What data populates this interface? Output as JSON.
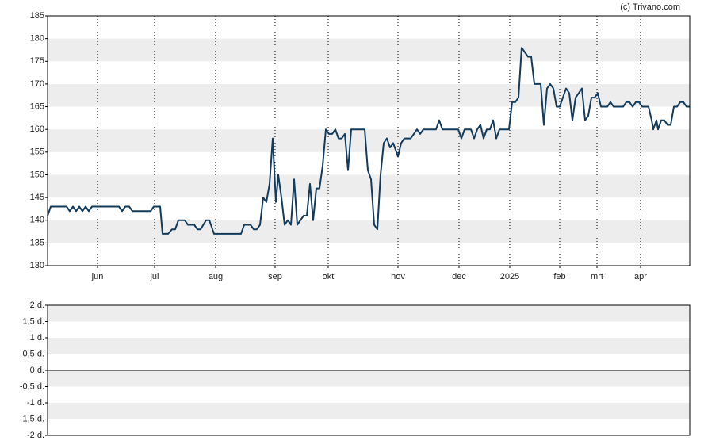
{
  "watermark": "(c) Trivano.com",
  "chart_data": [
    {
      "type": "line",
      "x": [
        0,
        4,
        24,
        28,
        32,
        36,
        40,
        44,
        48,
        52,
        56,
        90,
        94,
        98,
        103,
        107,
        130,
        134,
        142,
        145,
        152,
        157,
        161,
        165,
        173,
        177,
        185,
        189,
        193,
        200,
        204,
        210,
        244,
        248,
        256,
        260,
        264,
        268,
        272,
        276,
        280,
        284,
        288,
        291,
        295,
        299,
        303,
        307,
        311,
        315,
        319,
        323,
        327,
        331,
        335,
        339,
        343,
        347,
        351,
        355,
        359,
        363,
        367,
        371,
        375,
        379,
        383,
        387,
        400,
        404,
        408,
        412,
        416,
        420,
        424,
        428,
        432,
        436,
        440,
        442,
        446,
        450,
        458,
        462,
        466,
        470,
        474,
        490,
        494,
        498,
        518,
        522,
        526,
        534,
        538,
        542,
        546,
        550,
        554,
        558,
        562,
        566,
        570,
        582,
        586,
        590,
        594,
        598,
        602,
        606,
        610,
        614,
        622,
        626,
        630,
        634,
        638,
        642,
        646,
        650,
        654,
        658,
        662,
        666,
        670,
        674,
        678,
        682,
        686,
        690,
        694,
        698,
        706,
        710,
        714,
        726,
        730,
        734,
        738,
        742,
        746,
        750,
        758,
        762,
        764,
        768,
        770,
        774,
        778,
        782,
        786,
        790,
        794,
        798,
        802,
        806,
        810
      ],
      "series": [
        {
          "color": "#123b5c",
          "values": [
            141,
            143,
            143,
            142,
            143,
            142,
            143,
            142,
            143,
            142,
            143,
            143,
            142,
            143,
            143,
            142,
            142,
            143,
            143,
            137,
            137,
            138,
            138,
            140,
            140,
            139,
            139,
            138,
            138,
            140,
            140,
            137,
            137,
            139,
            139,
            138,
            138,
            139,
            145,
            144,
            148,
            158,
            144,
            150,
            145,
            139,
            140,
            139,
            149,
            139,
            140,
            141,
            141,
            148,
            140,
            147,
            147,
            152,
            160,
            159,
            159,
            160,
            158,
            158,
            159,
            151,
            160,
            160,
            160,
            151,
            149,
            139,
            138,
            150,
            157,
            158,
            156,
            157,
            155,
            154,
            157,
            158,
            158,
            159,
            160,
            159,
            160,
            160,
            162,
            160,
            160,
            158,
            160,
            160,
            158,
            160,
            161,
            158,
            160,
            160,
            162,
            158,
            160,
            160,
            166,
            166,
            167,
            178,
            177,
            176,
            176,
            170,
            170,
            161,
            169,
            170,
            169,
            165,
            165,
            167,
            169,
            168,
            162,
            167,
            168,
            169,
            162,
            163,
            167,
            167,
            168,
            165,
            165,
            166,
            165,
            165,
            166,
            166,
            165,
            166,
            166,
            165,
            165,
            162,
            160,
            162,
            160,
            162,
            162,
            161,
            161,
            165,
            165,
            166,
            166,
            165,
            165
          ]
        }
      ],
      "xlim": [
        0,
        810
      ],
      "xticks": [
        {
          "value": 63,
          "label": "jun"
        },
        {
          "value": 135,
          "label": "jul"
        },
        {
          "value": 212,
          "label": "aug"
        },
        {
          "value": 287,
          "label": "sep"
        },
        {
          "value": 354,
          "label": "okt"
        },
        {
          "value": 442,
          "label": "nov"
        },
        {
          "value": 519,
          "label": "dec"
        },
        {
          "value": 583,
          "label": "2025"
        },
        {
          "value": 646,
          "label": "feb"
        },
        {
          "value": 693,
          "label": "mrt"
        },
        {
          "value": 748,
          "label": "apr"
        }
      ],
      "ylim": [
        130,
        185
      ],
      "yticks": [
        130,
        135,
        140,
        145,
        150,
        155,
        160,
        165,
        170,
        175,
        180,
        185
      ]
    },
    {
      "type": "line",
      "ylim": [
        -2,
        2
      ],
      "yticks": [
        {
          "value": 2,
          "label": "2 d."
        },
        {
          "value": 1.5,
          "label": "1,5 d."
        },
        {
          "value": 1,
          "label": "1 d."
        },
        {
          "value": 0.5,
          "label": "0,5 d."
        },
        {
          "value": 0,
          "label": "0 d."
        },
        {
          "value": -0.5,
          "label": "-0,5 d."
        },
        {
          "value": -1,
          "label": "-1 d."
        },
        {
          "value": -1.5,
          "label": "-1,5 d."
        },
        {
          "value": -2,
          "label": "-2 d."
        }
      ]
    }
  ]
}
